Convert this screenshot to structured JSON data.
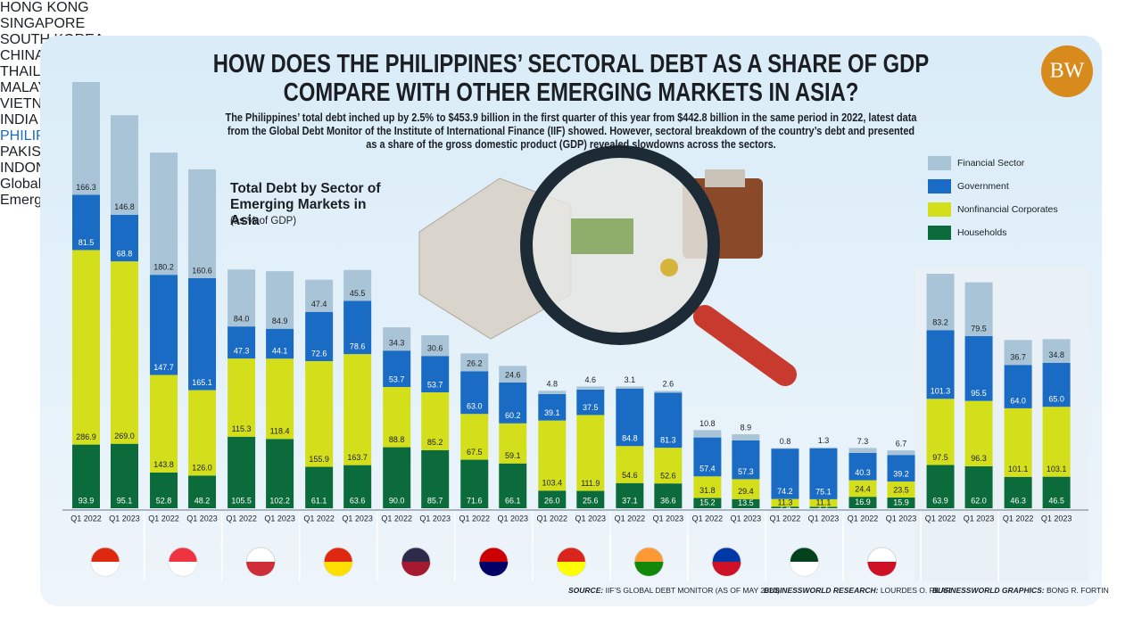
{
  "logo": "BW",
  "headline": "HOW DOES THE PHILIPPINES’ SECTORAL DEBT AS A SHARE OF GDP COMPARE WITH OTHER EMERGING MARKETS IN ASIA?",
  "intro": "The Philippines’ total debt inched up by 2.5% to $453.9 billion in the first quarter of this year from $442.8 billion in the same period in 2022, latest data from the Global Debt Monitor of the Institute of International Finance (IIF) showed. However, sectoral breakdown of the country’s debt and presented as a share of the gross domestic product (GDP) revealed slowdowns across the sectors.",
  "chart_data": {
    "type": "bar",
    "stacked": true,
    "title": "Total Debt by Sector of Emerging Markets in Asia",
    "unit": "(as % of GDP)",
    "groups": [
      "HONG KONG",
      "SINGAPORE",
      "SOUTH KOREA",
      "CHINA",
      "THAILAND",
      "MALAYSIA",
      "VIETNAM",
      "INDIA",
      "PHILIPPINES",
      "PAKISTAN",
      "INDONESIA",
      "Global",
      "Emerging Markets"
    ],
    "categories": [
      "Q1 2022",
      "Q1 2023",
      "Q1 2022",
      "Q1 2023",
      "Q1 2022",
      "Q1 2023",
      "Q1 2022",
      "Q1 2023",
      "Q1 2022",
      "Q1 2023",
      "Q1 2022",
      "Q1 2023",
      "Q1 2022",
      "Q1 2023",
      "Q1 2022",
      "Q1 2023",
      "Q1 2022",
      "Q1 2023",
      "Q1 2022",
      "Q1 2023",
      "Q1 2022",
      "Q1 2023",
      "Q1 2022",
      "Q1 2023",
      "Q1 2022",
      "Q1 2023"
    ],
    "series": [
      {
        "name": "Households",
        "color": "#0b6b3a",
        "values": [
          93.9,
          95.1,
          52.8,
          48.2,
          105.5,
          102.2,
          61.1,
          63.6,
          90.0,
          85.7,
          71.6,
          66.1,
          26.0,
          25.6,
          37.1,
          36.6,
          15.2,
          13.5,
          2.4,
          2.2,
          16.9,
          15.9,
          63.9,
          62.0,
          46.3,
          46.5
        ],
        "value_labels": [
          "93.9",
          "95.1",
          "52.8",
          "48.2",
          "105.5",
          "102.2",
          "61.1",
          "63.6",
          "90.0",
          "85.7",
          "71.6",
          "66.1",
          "26.0",
          "25.6",
          "37.1",
          "36.6",
          "15.2",
          "13.5",
          "2.4",
          "2.2",
          "16.9",
          "15.9",
          "63.9",
          "62.0",
          "46.3",
          "46.5"
        ]
      },
      {
        "name": "Nonfinancial Corporates",
        "color": "#d4df1c",
        "values": [
          286.9,
          269.0,
          143.8,
          126.0,
          115.3,
          118.4,
          155.9,
          163.7,
          88.8,
          85.2,
          67.5,
          59.1,
          103.4,
          111.9,
          54.6,
          52.6,
          31.8,
          29.4,
          11.3,
          11.1,
          24.4,
          23.5,
          97.5,
          96.3,
          101.1,
          103.1
        ],
        "value_labels": [
          "286.9",
          "269.0",
          "143.8",
          "126.0",
          "115.3",
          "118.4",
          "155.9",
          "163.7",
          "88.8",
          "85.2",
          "67.5",
          "59.1",
          "103.4",
          "111.9",
          "54.6",
          "52.6",
          "31.8",
          "29.4",
          "11.3",
          "11.1",
          "24.4",
          "23.5",
          "97.5",
          "96.3",
          "101.1",
          "103.1"
        ]
      },
      {
        "name": "Government",
        "color": "#1a6bc4",
        "values": [
          81.5,
          68.8,
          147.7,
          165.1,
          47.3,
          44.1,
          72.6,
          78.6,
          53.7,
          53.7,
          63.0,
          60.2,
          39.1,
          37.5,
          84.8,
          81.3,
          57.4,
          57.3,
          74.2,
          75.1,
          40.3,
          39.2,
          101.3,
          95.5,
          64.0,
          65.0
        ],
        "value_labels": [
          "81.5",
          "68.8",
          "147.7",
          "165.1",
          "47.3",
          "44.1",
          "72.6",
          "78.6",
          "53.7",
          "53.7",
          "63.0",
          "60.2",
          "39.1",
          "37.5",
          "84.8",
          "81.3",
          "57.4",
          "57.3",
          "74.2",
          "75.1",
          "40.3",
          "39.2",
          "101.3",
          "95.5",
          "64.0",
          "65.0"
        ]
      },
      {
        "name": "Financial Sector",
        "color": "#a9c4d6",
        "values": [
          166.3,
          146.8,
          180.2,
          160.6,
          84.0,
          84.9,
          47.4,
          45.5,
          34.3,
          30.6,
          26.2,
          24.6,
          4.8,
          4.6,
          3.1,
          2.6,
          10.8,
          8.9,
          0.8,
          1.3,
          7.3,
          6.7,
          83.2,
          79.5,
          36.7,
          34.8
        ],
        "value_labels": [
          "166.3",
          "146.8",
          "180.2",
          "160.6",
          "84.0",
          "84.9",
          "47.4",
          "45.5",
          "34.3",
          "30.6",
          "26.2",
          "24.6",
          "4.8",
          "4.6",
          "3.1",
          "2.6",
          "10.8",
          "8.9",
          "0.8",
          "1.3",
          "7.3",
          "6.7",
          "83.2",
          "79.5",
          "36.7",
          "34.8"
        ]
      }
    ]
  },
  "footer": {
    "source_label": "SOURCE:",
    "source": "IIF’S GLOBAL DEBT MONITOR (AS OF MAY 2023)",
    "research_label": "BUSINESSWORLD RESEARCH:",
    "research": "LOURDES O. PILAR",
    "graphics_label": "BUSINESSWORLD GRAPHICS:",
    "graphics": "BONG R. FORTIN"
  }
}
